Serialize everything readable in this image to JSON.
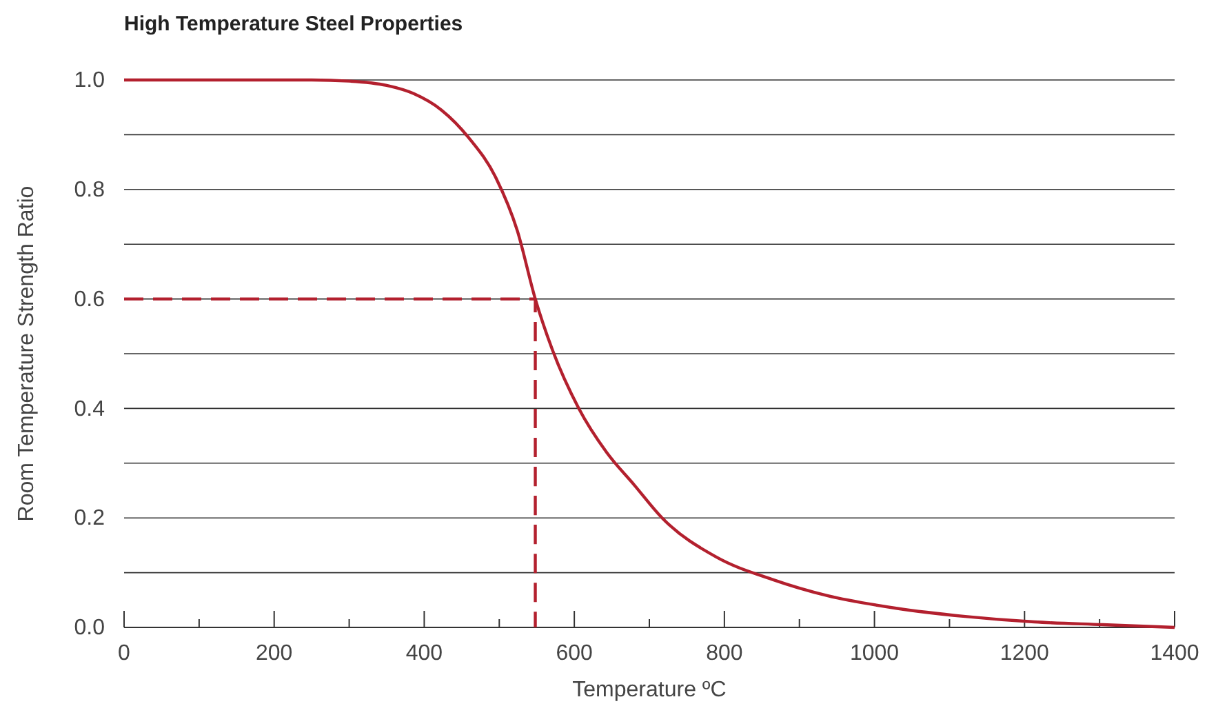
{
  "chart_data": {
    "type": "line",
    "title": "High Temperature Steel Properties",
    "xlabel": "Temperature ºC",
    "ylabel": "Room Temperature Strength Ratio",
    "xlim": [
      0,
      1400
    ],
    "ylim": [
      0,
      1
    ],
    "xticks": [
      0,
      {
        "value": 100,
        "label": null
      },
      200,
      {
        "value": 300,
        "label": null
      },
      400,
      {
        "value": 500,
        "label": null
      },
      600,
      {
        "value": 700,
        "label": null
      },
      800,
      {
        "value": 900,
        "label": null
      },
      1000,
      {
        "value": 1100,
        "label": null
      },
      1200,
      {
        "value": 1300,
        "label": null
      },
      1400
    ],
    "yticks": [
      {
        "value": 0,
        "label": "0.0"
      },
      {
        "value": 0.1,
        "label": null
      },
      {
        "value": 0.2,
        "label": "0.2"
      },
      {
        "value": 0.3,
        "label": null
      },
      {
        "value": 0.4,
        "label": "0.4"
      },
      {
        "value": 0.5,
        "label": null
      },
      {
        "value": 0.6,
        "label": "0.6"
      },
      {
        "value": 0.7,
        "label": null
      },
      {
        "value": 0.8,
        "label": "0.8"
      },
      {
        "value": 0.9,
        "label": null
      },
      {
        "value": 1.0,
        "label": "1.0"
      }
    ],
    "grid": "y",
    "marker": "none",
    "series": [
      {
        "color": "#b3202e",
        "line_style": "solid",
        "x": [
          0,
          100,
          200,
          250,
          300,
          350,
          386,
          423,
          459,
          496,
          524,
          548,
          570,
          606,
          643,
          680,
          717,
          790,
          863,
          937,
          1029,
          1121,
          1213,
          1304,
          1400
        ],
        "values": [
          1.0,
          1.0,
          1.0,
          1.0,
          0.998,
          0.99,
          0.975,
          0.945,
          0.895,
          0.82,
          0.725,
          0.6,
          0.51,
          0.4,
          0.32,
          0.26,
          0.2,
          0.128,
          0.088,
          0.058,
          0.035,
          0.02,
          0.01,
          0.005,
          0.0
        ]
      },
      {
        "color": "#b3202e",
        "line_style": "dashed",
        "x": [
          0,
          548,
          548
        ],
        "values": [
          0.6,
          0.6,
          0
        ]
      }
    ]
  }
}
